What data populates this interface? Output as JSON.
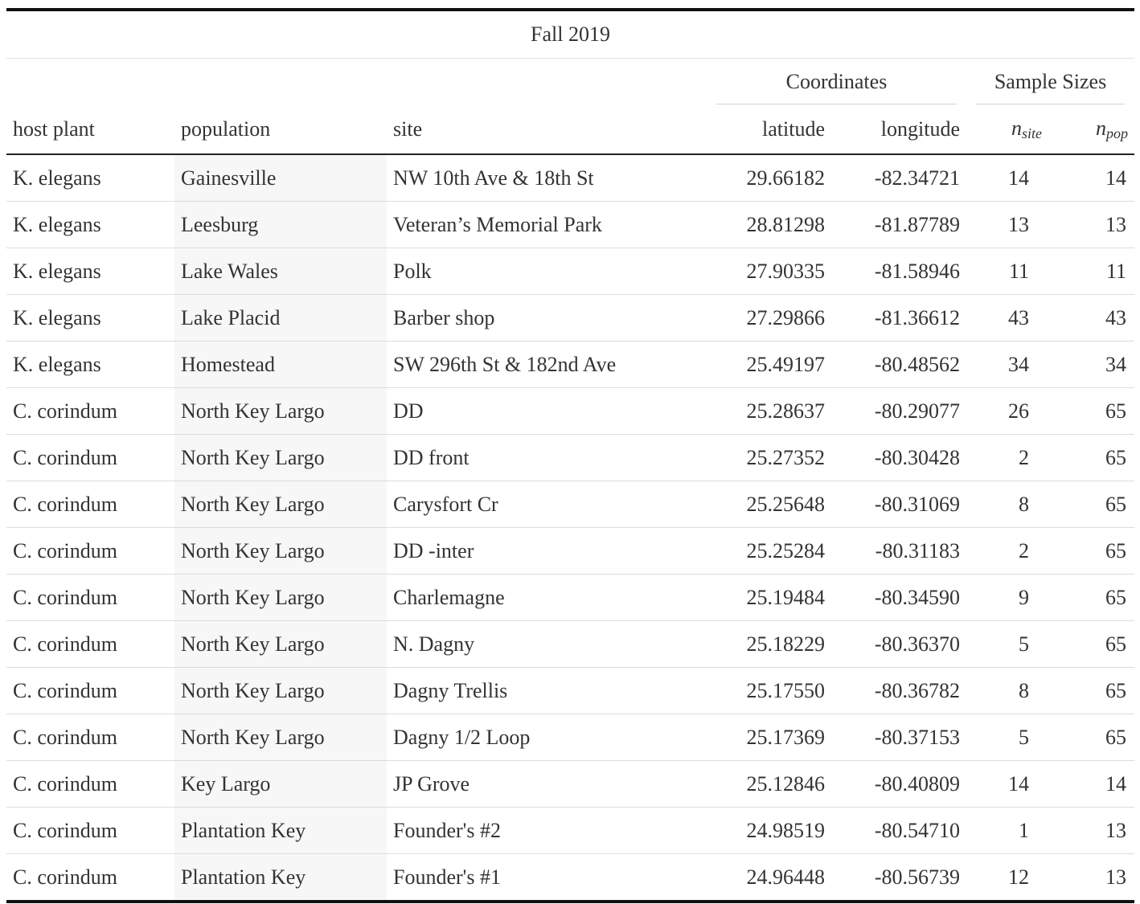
{
  "title": "Fall 2019",
  "spanners": {
    "coordinates": "Coordinates",
    "sample_sizes": "Sample Sizes"
  },
  "columns": {
    "host_plant": "host plant",
    "population": "population",
    "site": "site",
    "latitude": "latitude",
    "longitude": "longitude",
    "n_site_base": "n",
    "n_site_sub": "site",
    "n_pop_base": "n",
    "n_pop_sub": "pop"
  },
  "rows": [
    {
      "host": "K. elegans",
      "pop": "Gainesville",
      "site": "NW 10th Ave & 18th St",
      "lat": "29.66182",
      "lon": "-82.34721",
      "nsite": "14",
      "npop": "14"
    },
    {
      "host": "K. elegans",
      "pop": "Leesburg",
      "site": "Veteran’s Memorial Park",
      "lat": "28.81298",
      "lon": "-81.87789",
      "nsite": "13",
      "npop": "13"
    },
    {
      "host": "K. elegans",
      "pop": "Lake Wales",
      "site": "Polk",
      "lat": "27.90335",
      "lon": "-81.58946",
      "nsite": "11",
      "npop": "11"
    },
    {
      "host": "K. elegans",
      "pop": "Lake Placid",
      "site": "Barber shop",
      "lat": "27.29866",
      "lon": "-81.36612",
      "nsite": "43",
      "npop": "43"
    },
    {
      "host": "K. elegans",
      "pop": "Homestead",
      "site": "SW 296th St & 182nd Ave",
      "lat": "25.49197",
      "lon": "-80.48562",
      "nsite": "34",
      "npop": "34"
    },
    {
      "host": "C. corindum",
      "pop": "North Key Largo",
      "site": "DD",
      "lat": "25.28637",
      "lon": "-80.29077",
      "nsite": "26",
      "npop": "65"
    },
    {
      "host": "C. corindum",
      "pop": "North Key Largo",
      "site": "DD front",
      "lat": "25.27352",
      "lon": "-80.30428",
      "nsite": "2",
      "npop": "65"
    },
    {
      "host": "C. corindum",
      "pop": "North Key Largo",
      "site": "Carysfort Cr",
      "lat": "25.25648",
      "lon": "-80.31069",
      "nsite": "8",
      "npop": "65"
    },
    {
      "host": "C. corindum",
      "pop": "North Key Largo",
      "site": "DD -inter",
      "lat": "25.25284",
      "lon": "-80.31183",
      "nsite": "2",
      "npop": "65"
    },
    {
      "host": "C. corindum",
      "pop": "North Key Largo",
      "site": "Charlemagne",
      "lat": "25.19484",
      "lon": "-80.34590",
      "nsite": "9",
      "npop": "65"
    },
    {
      "host": "C. corindum",
      "pop": "North Key Largo",
      "site": "N. Dagny",
      "lat": "25.18229",
      "lon": "-80.36370",
      "nsite": "5",
      "npop": "65"
    },
    {
      "host": "C. corindum",
      "pop": "North Key Largo",
      "site": "Dagny Trellis",
      "lat": "25.17550",
      "lon": "-80.36782",
      "nsite": "8",
      "npop": "65"
    },
    {
      "host": "C. corindum",
      "pop": "North Key Largo",
      "site": "Dagny 1/2 Loop",
      "lat": "25.17369",
      "lon": "-80.37153",
      "nsite": "5",
      "npop": "65"
    },
    {
      "host": "C. corindum",
      "pop": "Key Largo",
      "site": "JP Grove",
      "lat": "25.12846",
      "lon": "-80.40809",
      "nsite": "14",
      "npop": "14"
    },
    {
      "host": "C. corindum",
      "pop": "Plantation Key",
      "site": "Founder's #2",
      "lat": "24.98519",
      "lon": "-80.54710",
      "nsite": "1",
      "npop": "13"
    },
    {
      "host": "C. corindum",
      "pop": "Plantation Key",
      "site": "Founder's #1",
      "lat": "24.96448",
      "lon": "-80.56739",
      "nsite": "12",
      "npop": "13"
    }
  ]
}
